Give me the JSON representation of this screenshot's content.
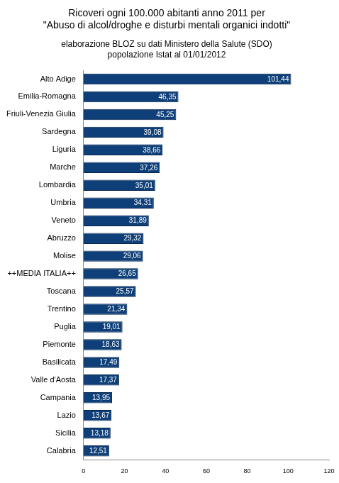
{
  "chart_data": {
    "type": "bar",
    "orientation": "horizontal",
    "title": [
      "Ricoveri ogni 100.000 abitanti anno 2011 per",
      "\"Abuso di alcol/droghe e disturbi mentali organici indotti\""
    ],
    "subtitle": [
      "elaborazione BLOZ su dati Ministero della Salute (SDO)",
      "popolazione Istat al 01/01/2012"
    ],
    "categories": [
      "Alto Adige",
      "Emilia-Romagna",
      "Friuli-Venezia Giulia",
      "Sardegna",
      "Liguria",
      "Marche",
      "Lombardia",
      "Umbria",
      "Veneto",
      "Abruzzo",
      "Molise",
      "++MEDIA ITALIA++",
      "Toscana",
      "Trentino",
      "Puglia",
      "Piemonte",
      "Basilicata",
      "Valle d'Aosta",
      "Campania",
      "Lazio",
      "Sicilia",
      "Calabria"
    ],
    "values": [
      101.44,
      46.35,
      45.25,
      39.08,
      38.66,
      37.26,
      35.01,
      34.31,
      31.89,
      29.32,
      29.06,
      26.65,
      25.57,
      21.34,
      19.01,
      18.63,
      17.49,
      17.37,
      13.95,
      13.67,
      13.18,
      12.51
    ],
    "value_labels": [
      "101,44",
      "46,35",
      "45,25",
      "39,08",
      "38,66",
      "37,26",
      "35,01",
      "34,31",
      "31,89",
      "29,32",
      "29,06",
      "26,65",
      "25,57",
      "21,34",
      "19,01",
      "18,63",
      "17,49",
      "17,37",
      "13,95",
      "13,67",
      "13,18",
      "12,51"
    ],
    "color": "#0e3f78",
    "xlim": [
      0,
      120
    ],
    "xticks": [
      0,
      20,
      40,
      60,
      80,
      100,
      120
    ],
    "grid": false,
    "data_labels": true
  }
}
